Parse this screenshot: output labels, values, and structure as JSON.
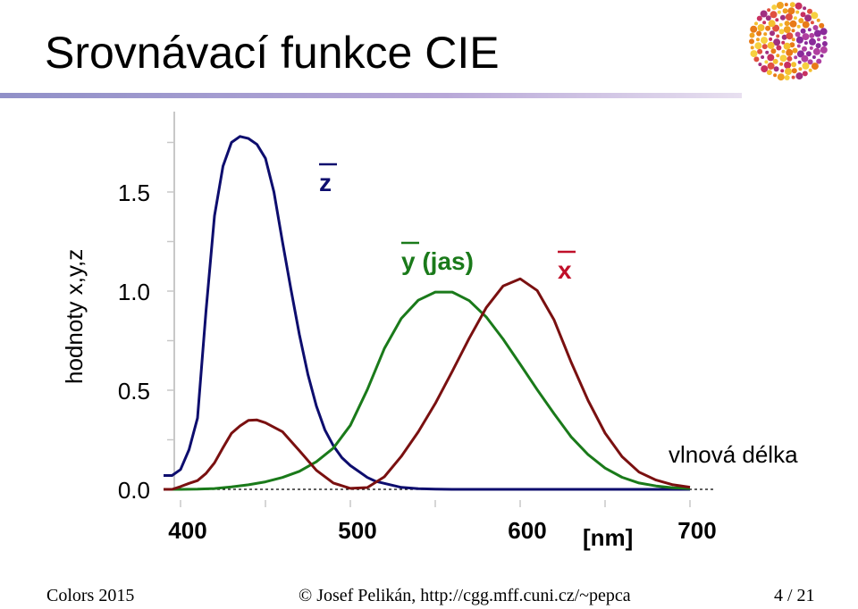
{
  "slide": {
    "title": "Srovnávací funkce CIE",
    "footer_left": "Colors 2015",
    "footer_center": "© Josef Pelikán, http://cgg.mff.cuni.cz/~pepca",
    "footer_page": "4 / 21"
  },
  "chart_data": {
    "type": "line",
    "ylabel": "hodnoty x,y,z",
    "xlim": [
      390,
      712
    ],
    "ylim": [
      0,
      1.85
    ],
    "x_ticks": [
      400,
      500,
      600,
      700
    ],
    "y_ticks": [
      0.0,
      0.5,
      1.0,
      1.5
    ],
    "x_tick_labels": [
      "400",
      "500",
      "600",
      "700"
    ],
    "y_tick_labels": [
      "0.0",
      "0.5",
      "1.0",
      "1.5"
    ],
    "x_unit_label": "[nm]",
    "x_axis_note": "vlnová délka",
    "grid": false,
    "series": [
      {
        "name": "z",
        "color": "#0d0d6e",
        "x": [
          390,
          395,
          400,
          405,
          410,
          415,
          420,
          425,
          430,
          435,
          440,
          445,
          450,
          455,
          460,
          465,
          470,
          475,
          480,
          485,
          490,
          495,
          500,
          505,
          510,
          515,
          520,
          525,
          530,
          540,
          550,
          560,
          570,
          600,
          700
        ],
        "y": [
          0.07,
          0.07,
          0.1,
          0.2,
          0.36,
          0.9,
          1.38,
          1.63,
          1.75,
          1.78,
          1.77,
          1.74,
          1.67,
          1.5,
          1.25,
          1.01,
          0.78,
          0.58,
          0.42,
          0.3,
          0.22,
          0.16,
          0.12,
          0.09,
          0.06,
          0.04,
          0.03,
          0.02,
          0.01,
          0.003,
          0.001,
          0.0,
          0.0,
          0.0,
          0.0
        ]
      },
      {
        "name": "y (jas)",
        "color": "#1a7a1a",
        "x": [
          390,
          400,
          410,
          420,
          430,
          440,
          450,
          460,
          470,
          480,
          490,
          500,
          510,
          520,
          530,
          540,
          550,
          560,
          570,
          580,
          590,
          600,
          610,
          620,
          630,
          640,
          650,
          660,
          670,
          680,
          690,
          700
        ],
        "y": [
          0.0,
          0.0,
          0.001,
          0.004,
          0.012,
          0.023,
          0.038,
          0.06,
          0.091,
          0.139,
          0.208,
          0.323,
          0.503,
          0.71,
          0.862,
          0.954,
          0.995,
          0.995,
          0.952,
          0.87,
          0.757,
          0.631,
          0.503,
          0.381,
          0.265,
          0.175,
          0.107,
          0.061,
          0.032,
          0.017,
          0.008,
          0.004
        ]
      },
      {
        "name": "x",
        "color": "#7a1010",
        "x": [
          390,
          395,
          400,
          405,
          410,
          415,
          420,
          425,
          430,
          435,
          440,
          445,
          450,
          460,
          470,
          480,
          490,
          500,
          510,
          520,
          530,
          540,
          550,
          560,
          570,
          580,
          590,
          600,
          610,
          620,
          630,
          640,
          650,
          660,
          670,
          680,
          690,
          700
        ],
        "y": [
          0.0,
          0.0,
          0.014,
          0.03,
          0.044,
          0.08,
          0.134,
          0.21,
          0.283,
          0.32,
          0.348,
          0.35,
          0.336,
          0.291,
          0.195,
          0.096,
          0.032,
          0.005,
          0.009,
          0.063,
          0.166,
          0.29,
          0.433,
          0.595,
          0.762,
          0.916,
          1.026,
          1.062,
          1.003,
          0.854,
          0.642,
          0.448,
          0.284,
          0.165,
          0.087,
          0.047,
          0.023,
          0.011
        ]
      }
    ]
  }
}
